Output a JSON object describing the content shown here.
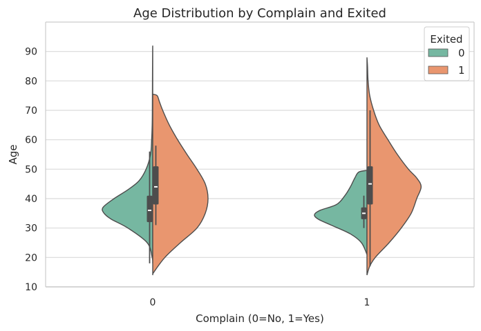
{
  "chart_data": {
    "type": "violin",
    "title": "Age Distribution by Complain and Exited",
    "xlabel": "Complain (0=No, 1=Yes)",
    "ylabel": "Age",
    "categories": [
      "0",
      "1"
    ],
    "ylim": [
      10,
      100
    ],
    "yticks": [
      10,
      20,
      30,
      40,
      50,
      60,
      70,
      80,
      90
    ],
    "grid": "horizontal",
    "split": true,
    "legend": {
      "title": "Exited",
      "placement": "top-right",
      "entries": [
        {
          "label": "0",
          "color": "#76b7a1"
        },
        {
          "label": "1",
          "color": "#e9966f"
        }
      ]
    },
    "series": [
      {
        "name": "0",
        "side": "left",
        "color": "#76b7a1",
        "groups": [
          {
            "category": "0",
            "profile": [
              [
                18,
                0.0
              ],
              [
                20,
                0.01
              ],
              [
                25,
                0.1
              ],
              [
                30,
                0.45
              ],
              [
                33,
                0.75
              ],
              [
                35,
                0.88
              ],
              [
                37,
                0.9
              ],
              [
                40,
                0.7
              ],
              [
                43,
                0.45
              ],
              [
                46,
                0.25
              ],
              [
                50,
                0.12
              ],
              [
                55,
                0.04
              ],
              [
                60,
                0.02
              ],
              [
                65,
                0.01
              ],
              [
                70,
                0.007
              ],
              [
                80,
                0.005
              ],
              [
                90,
                0.002
              ],
              [
                92,
                0.0
              ]
            ],
            "box": {
              "q1": 32,
              "median": 36,
              "q3": 41,
              "whisker_low": 18,
              "whisker_high": 56
            }
          },
          {
            "category": "1",
            "profile": [
              [
                21,
                0.0
              ],
              [
                25,
                0.1
              ],
              [
                28,
                0.3
              ],
              [
                31,
                0.65
              ],
              [
                33,
                0.88
              ],
              [
                34.5,
                0.95
              ],
              [
                36,
                0.85
              ],
              [
                38,
                0.55
              ],
              [
                41,
                0.4
              ],
              [
                44,
                0.3
              ],
              [
                47,
                0.22
              ],
              [
                49,
                0.15
              ],
              [
                49.6,
                0.0
              ]
            ],
            "box": {
              "q1": 33,
              "median": 35,
              "q3": 37,
              "whisker_low": 30,
              "whisker_high": 41
            }
          }
        ]
      },
      {
        "name": "1",
        "side": "right",
        "color": "#e9966f",
        "groups": [
          {
            "category": "0",
            "profile": [
              [
                14,
                0.0
              ],
              [
                15,
                0.02
              ],
              [
                20,
                0.22
              ],
              [
                25,
                0.5
              ],
              [
                30,
                0.8
              ],
              [
                35,
                0.95
              ],
              [
                40,
                1.0
              ],
              [
                45,
                0.95
              ],
              [
                50,
                0.8
              ],
              [
                55,
                0.62
              ],
              [
                60,
                0.45
              ],
              [
                65,
                0.3
              ],
              [
                70,
                0.18
              ],
              [
                73,
                0.12
              ],
              [
                75,
                0.08
              ],
              [
                75.5,
                0.0
              ]
            ],
            "box": {
              "q1": 38,
              "median": 44,
              "q3": 51,
              "whisker_low": 31,
              "whisker_high": 58
            }
          },
          {
            "category": "1",
            "profile": [
              [
                14,
                0.0
              ],
              [
                17,
                0.05
              ],
              [
                20,
                0.15
              ],
              [
                25,
                0.4
              ],
              [
                30,
                0.62
              ],
              [
                35,
                0.8
              ],
              [
                40,
                0.9
              ],
              [
                44,
                0.98
              ],
              [
                47,
                0.9
              ],
              [
                50,
                0.75
              ],
              [
                55,
                0.55
              ],
              [
                60,
                0.38
              ],
              [
                65,
                0.22
              ],
              [
                70,
                0.12
              ],
              [
                75,
                0.05
              ],
              [
                80,
                0.02
              ],
              [
                85,
                0.01
              ],
              [
                88,
                0.0
              ]
            ],
            "box": {
              "q1": 38,
              "median": 45,
              "q3": 51,
              "whisker_low": 17,
              "whisker_high": 70
            }
          }
        ]
      }
    ]
  }
}
